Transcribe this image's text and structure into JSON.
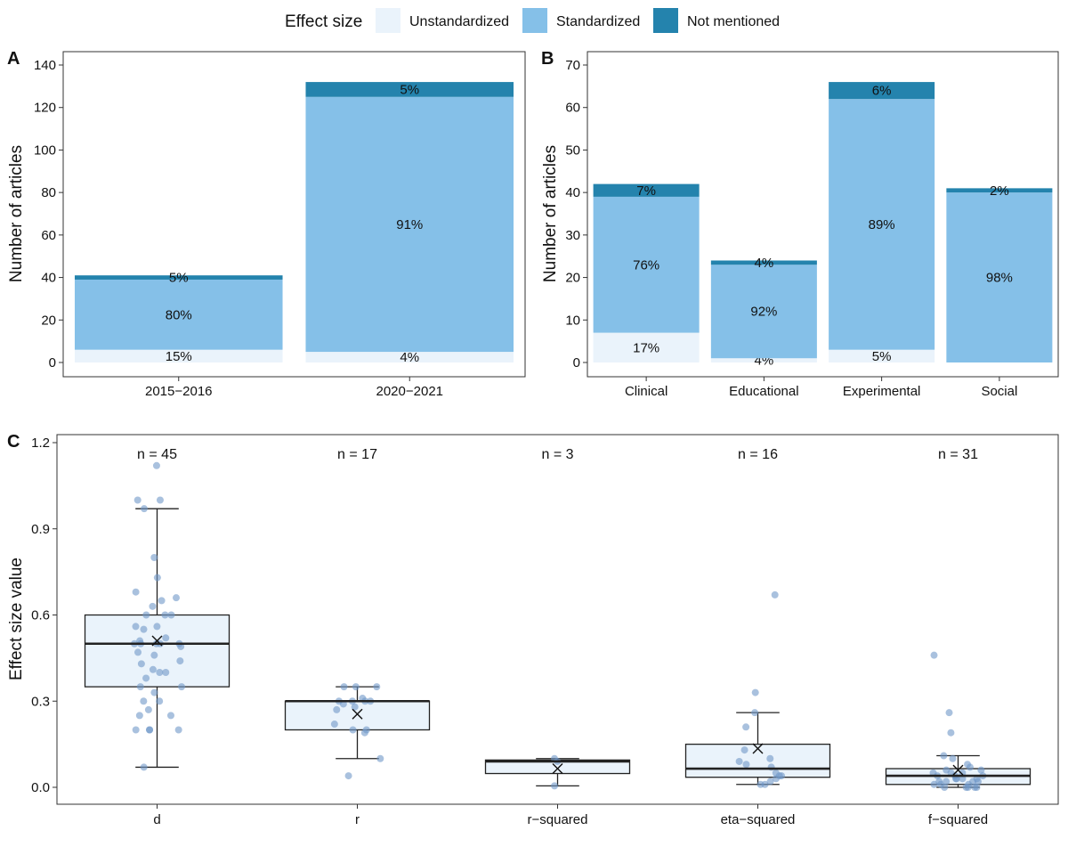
{
  "legend": {
    "title": "Effect size",
    "items": [
      {
        "key": "unstandardized",
        "label": "Unstandardized",
        "color": "#eaf3fb"
      },
      {
        "key": "standardized",
        "label": "Standardized",
        "color": "#85c0e8"
      },
      {
        "key": "not_mentioned",
        "label": "Not mentioned",
        "color": "#2483ad"
      }
    ]
  },
  "chart_data": [
    {
      "id": "A",
      "panel_label": "A",
      "type": "bar",
      "stacked": true,
      "ylabel": "Number of articles",
      "ylim": [
        0,
        140
      ],
      "yticks": [
        "0",
        "20",
        "40",
        "60",
        "80",
        "100",
        "120",
        "140"
      ],
      "ytick_values": [
        0,
        20,
        40,
        60,
        80,
        100,
        120,
        140
      ],
      "categories": [
        "2015−2016",
        "2020−2021"
      ],
      "series": [
        {
          "name": "Unstandardized",
          "values": [
            6,
            5
          ],
          "labels": [
            "15%",
            "4%"
          ]
        },
        {
          "name": "Standardized",
          "values": [
            33,
            120
          ],
          "labels": [
            "80%",
            "91%"
          ]
        },
        {
          "name": "Not mentioned",
          "values": [
            2,
            7
          ],
          "labels": [
            "5%",
            "5%"
          ]
        }
      ]
    },
    {
      "id": "B",
      "panel_label": "B",
      "type": "bar",
      "stacked": true,
      "ylabel": "Number of articles",
      "ylim": [
        0,
        70
      ],
      "yticks": [
        "0",
        "10",
        "20",
        "30",
        "40",
        "50",
        "60",
        "70"
      ],
      "ytick_values": [
        0,
        10,
        20,
        30,
        40,
        50,
        60,
        70
      ],
      "categories": [
        "Clinical",
        "Educational",
        "Experimental",
        "Social"
      ],
      "series": [
        {
          "name": "Unstandardized",
          "values": [
            7,
            1,
            3,
            0
          ],
          "labels": [
            "17%",
            "4%",
            "5%",
            ""
          ]
        },
        {
          "name": "Standardized",
          "values": [
            32,
            22,
            59,
            40
          ],
          "labels": [
            "76%",
            "92%",
            "89%",
            "98%"
          ]
        },
        {
          "name": "Not mentioned",
          "values": [
            3,
            1,
            4,
            1
          ],
          "labels": [
            "7%",
            "4%",
            "6%",
            "2%"
          ]
        }
      ]
    },
    {
      "id": "C",
      "panel_label": "C",
      "type": "box",
      "ylabel": "Effect size value",
      "ylim": [
        0,
        1.2
      ],
      "yticks": [
        "0.0",
        "0.3",
        "0.6",
        "0.9",
        "1.2"
      ],
      "ytick_values": [
        0,
        0.3,
        0.6,
        0.9,
        1.2
      ],
      "categories": [
        "d",
        "r",
        "r−squared",
        "eta−squared",
        "f−squared"
      ],
      "n_labels": [
        "n = 45",
        "n = 17",
        "n = 3",
        "n = 16",
        "n = 31"
      ],
      "boxes": [
        {
          "min": 0.07,
          "q1": 0.35,
          "median": 0.5,
          "q3": 0.6,
          "max": 0.97,
          "mean": 0.51,
          "points": [
            1.12,
            1.0,
            1.0,
            0.97,
            0.8,
            0.73,
            0.68,
            0.66,
            0.65,
            0.63,
            0.6,
            0.6,
            0.6,
            0.56,
            0.56,
            0.55,
            0.52,
            0.51,
            0.5,
            0.5,
            0.5,
            0.5,
            0.5,
            0.49,
            0.47,
            0.46,
            0.44,
            0.43,
            0.41,
            0.4,
            0.4,
            0.38,
            0.35,
            0.35,
            0.33,
            0.3,
            0.3,
            0.27,
            0.25,
            0.25,
            0.2,
            0.2,
            0.2,
            0.2,
            0.07
          ]
        },
        {
          "min": 0.1,
          "q1": 0.2,
          "median": 0.3,
          "q3": 0.3,
          "max": 0.35,
          "mean": 0.255,
          "points": [
            0.35,
            0.35,
            0.35,
            0.31,
            0.3,
            0.3,
            0.3,
            0.3,
            0.29,
            0.28,
            0.27,
            0.22,
            0.2,
            0.2,
            0.19,
            0.1,
            0.04
          ]
        },
        {
          "min": 0.005,
          "q1": 0.048,
          "median": 0.09,
          "q3": 0.095,
          "max": 0.1,
          "mean": 0.065,
          "points": [
            0.1,
            0.09,
            0.005
          ]
        },
        {
          "min": 0.01,
          "q1": 0.035,
          "median": 0.065,
          "q3": 0.15,
          "max": 0.26,
          "mean": 0.135,
          "points": [
            0.67,
            0.33,
            0.26,
            0.21,
            0.13,
            0.1,
            0.09,
            0.08,
            0.07,
            0.05,
            0.04,
            0.04,
            0.03,
            0.02,
            0.01,
            0.01
          ]
        },
        {
          "min": 0.0,
          "q1": 0.01,
          "median": 0.04,
          "q3": 0.065,
          "max": 0.11,
          "mean": 0.06,
          "points": [
            0.46,
            0.26,
            0.19,
            0.11,
            0.1,
            0.08,
            0.07,
            0.06,
            0.06,
            0.05,
            0.05,
            0.05,
            0.04,
            0.04,
            0.04,
            0.03,
            0.03,
            0.03,
            0.03,
            0.02,
            0.02,
            0.02,
            0.02,
            0.01,
            0.01,
            0.01,
            0.0,
            0.0,
            0.0,
            0.0,
            0.0
          ]
        }
      ]
    }
  ]
}
